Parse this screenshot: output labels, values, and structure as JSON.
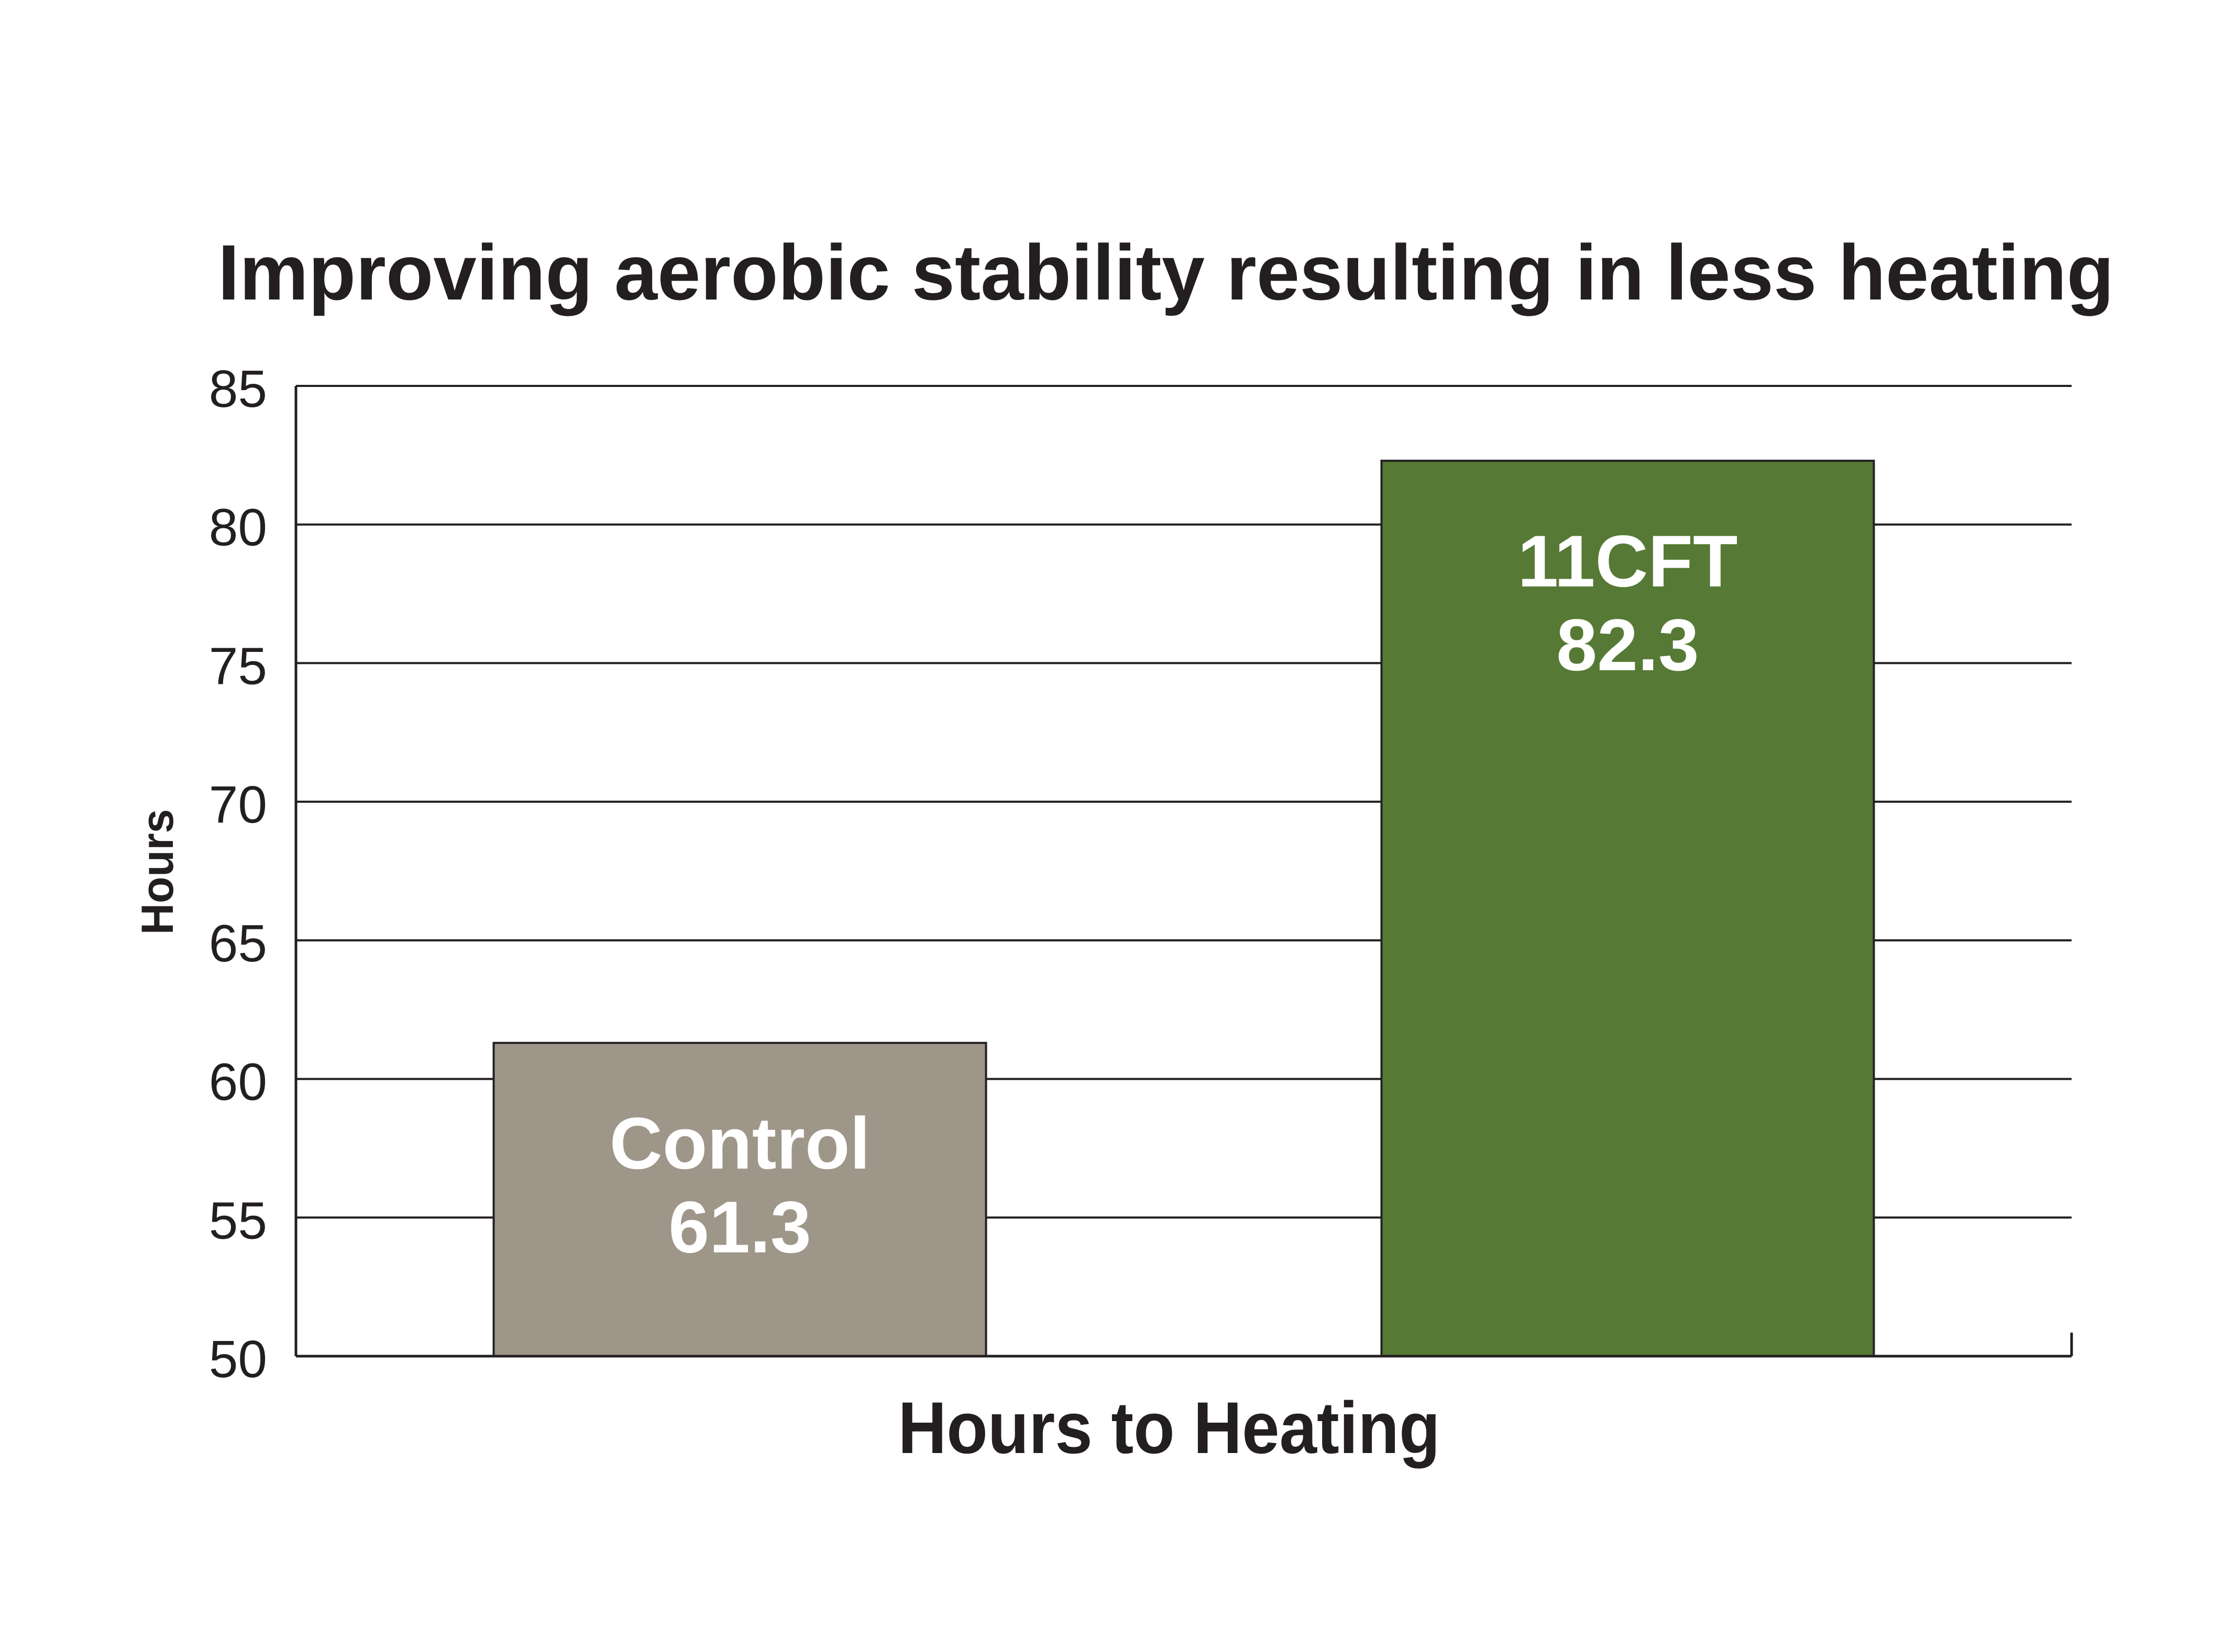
{
  "chart_data": {
    "type": "bar",
    "title": "Improving aerobic stability resulting in less heating",
    "xlabel": "Hours to Heating",
    "ylabel": "Hours",
    "ylim": [
      50,
      85
    ],
    "yticks": [
      50,
      55,
      60,
      65,
      70,
      75,
      80,
      85
    ],
    "grid": true,
    "categories": [
      "Control",
      "11CFT"
    ],
    "values": [
      61.3,
      82.3
    ],
    "data_labels": [
      "61.3",
      "82.3"
    ],
    "colors": [
      "#9f968a",
      "#567a35"
    ],
    "colors_meta": {
      "bar_outline": "#222222",
      "text": "#231f20",
      "label_text": "#ffffff"
    }
  }
}
